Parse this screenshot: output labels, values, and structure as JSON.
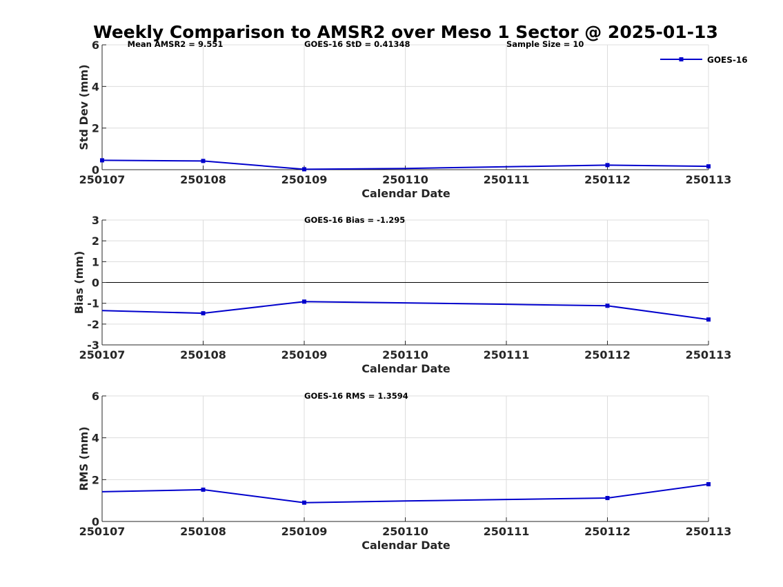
{
  "title": "Weekly Comparison to AMSR2 over Meso 1 Sector @ 2025-01-13",
  "colors": {
    "series": "#0000cc",
    "zero_line": "#000000",
    "grid": "#dcdcdc",
    "axis": "#262626"
  },
  "chart_data": [
    {
      "type": "line",
      "id": "stddev",
      "categories": [
        "250107",
        "250108",
        "250109",
        "250110",
        "250111",
        "250112",
        "250113"
      ],
      "x_tick_labels": [
        "250107",
        "250108",
        "250109",
        "250110",
        "250111",
        "250112",
        "250113"
      ],
      "series": [
        {
          "name": "GOES-16",
          "values": [
            0.45,
            0.42,
            0.02,
            0.06,
            0.14,
            0.22,
            0.16
          ],
          "markers": [
            true,
            true,
            true,
            false,
            false,
            true,
            true
          ]
        }
      ],
      "xlabel": "Calendar Date",
      "ylabel": "Std Dev (mm)",
      "ylim": [
        0,
        6
      ],
      "yticks": [
        0,
        2,
        4,
        6
      ],
      "ytick_labels": [
        "0",
        "2",
        "4",
        "6"
      ],
      "grid": true,
      "legend": {
        "entries": [
          "GOES-16"
        ],
        "placement": "top-right"
      },
      "annotations": [
        {
          "text": "Mean AMSR2 = 9.551",
          "at_x": 0.25
        },
        {
          "text": "GOES-16 StD = 0.41348",
          "at_x": 2.0
        },
        {
          "text": "Sample Size = 10",
          "at_x": 4.0
        }
      ]
    },
    {
      "type": "line",
      "id": "bias",
      "categories": [
        "250107",
        "250108",
        "250109",
        "250110",
        "250111",
        "250112",
        "250113"
      ],
      "x_tick_labels": [
        "250107",
        "250108",
        "250109",
        "250110",
        "250111",
        "250112",
        "250113"
      ],
      "series": [
        {
          "name": "GOES-16",
          "values": [
            -1.35,
            -1.48,
            -0.92,
            -0.98,
            -1.05,
            -1.12,
            -1.78
          ],
          "markers": [
            false,
            true,
            true,
            false,
            false,
            true,
            true
          ]
        }
      ],
      "xlabel": "Calendar Date",
      "ylabel": "Bias (mm)",
      "ylim": [
        -3,
        3
      ],
      "yticks": [
        -3,
        -2,
        -1,
        0,
        1,
        2,
        3
      ],
      "ytick_labels": [
        "-3",
        "-2",
        "-1",
        "0",
        "1",
        "2",
        "3"
      ],
      "zero_line": true,
      "grid": true,
      "annotations": [
        {
          "text": "GOES-16 Bias  = -1.295",
          "at_x": 2.0
        }
      ]
    },
    {
      "type": "line",
      "id": "rms",
      "categories": [
        "250107",
        "250108",
        "250109",
        "250110",
        "250111",
        "250112",
        "250113"
      ],
      "x_tick_labels": [
        "250107",
        "250108",
        "250109",
        "250110",
        "250111",
        "250112",
        "250113"
      ],
      "series": [
        {
          "name": "GOES-16",
          "values": [
            1.42,
            1.52,
            0.9,
            0.98,
            1.05,
            1.12,
            1.78
          ],
          "markers": [
            false,
            true,
            true,
            false,
            false,
            true,
            true
          ]
        }
      ],
      "xlabel": "Calendar Date",
      "ylabel": "RMS (mm)",
      "ylim": [
        0,
        6
      ],
      "yticks": [
        0,
        2,
        4,
        6
      ],
      "ytick_labels": [
        "0",
        "2",
        "4",
        "6"
      ],
      "grid": true,
      "annotations": [
        {
          "text": "GOES-16 RMS = 1.3594",
          "at_x": 2.0
        }
      ]
    }
  ]
}
